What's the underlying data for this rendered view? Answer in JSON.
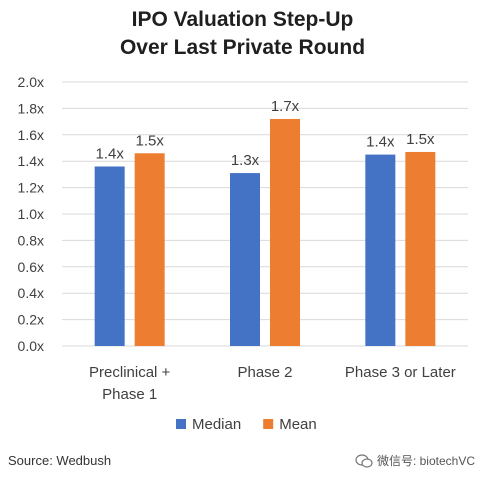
{
  "chart_data": {
    "type": "bar",
    "title_lines": [
      "IPO Valuation Step-Up",
      "Over Last Private Round"
    ],
    "categories": [
      [
        "Preclinical +",
        "Phase 1"
      ],
      [
        "Phase 2"
      ],
      [
        "Phase 3 or Later"
      ]
    ],
    "series": [
      {
        "name": "Median",
        "color": "#4472C4",
        "values": [
          1.36,
          1.31,
          1.45
        ],
        "labels": [
          "1.4x",
          "1.3x",
          "1.4x"
        ]
      },
      {
        "name": "Mean",
        "color": "#ED7D31",
        "values": [
          1.46,
          1.72,
          1.47
        ],
        "labels": [
          "1.5x",
          "1.7x",
          "1.5x"
        ]
      }
    ],
    "ylim": [
      0,
      2.0
    ],
    "yticks": [
      {
        "value": 0.0,
        "label": "0.0x"
      },
      {
        "value": 0.2,
        "label": "0.2x"
      },
      {
        "value": 0.4,
        "label": "0.4x"
      },
      {
        "value": 0.6,
        "label": "0.6x"
      },
      {
        "value": 0.8,
        "label": "0.8x"
      },
      {
        "value": 1.0,
        "label": "1.0x"
      },
      {
        "value": 1.2,
        "label": "1.2x"
      },
      {
        "value": 1.4,
        "label": "1.4x"
      },
      {
        "value": 1.6,
        "label": "1.6x"
      },
      {
        "value": 1.8,
        "label": "1.8x"
      },
      {
        "value": 2.0,
        "label": "2.0x"
      }
    ],
    "grid": true,
    "legend_position": "bottom"
  },
  "source_text": "Source: Wedbush",
  "watermark_text": "微信号: biotechVC"
}
